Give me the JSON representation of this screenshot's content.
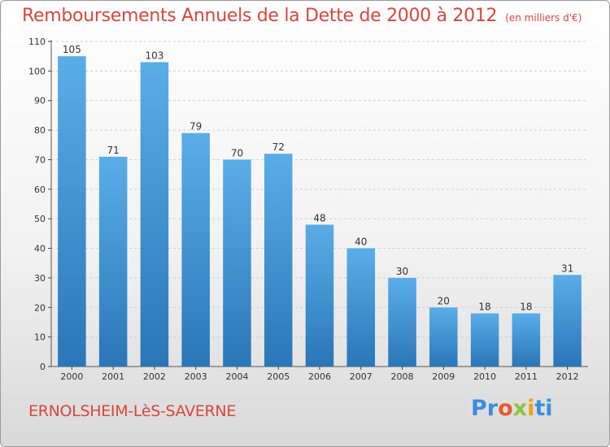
{
  "header": {
    "title": "Remboursements Annuels de la Dette de 2000 à 2012",
    "subtitle": "(en milliers d'€)"
  },
  "footer": {
    "commune": "ERNOLSHEIM-LèS-SAVERNE",
    "logo_parts": [
      "Pr",
      "o",
      "x",
      "i",
      "ti"
    ]
  },
  "colors": {
    "title": "#d8463d",
    "bar_top": "#5aaee8",
    "bar_bottom": "#2a76b8",
    "logo": [
      "#3a8ee0",
      "#e35a2b",
      "#8cc43a",
      "#f0a21a",
      "#3a8ee0"
    ]
  },
  "chart_data": {
    "type": "bar",
    "title": "Remboursements Annuels de la Dette de 2000 à 2012",
    "subtitle": "(en milliers d'€)",
    "xlabel": "",
    "ylabel": "",
    "categories": [
      "2000",
      "2001",
      "2002",
      "2003",
      "2004",
      "2005",
      "2006",
      "2007",
      "2008",
      "2009",
      "2010",
      "2011",
      "2012"
    ],
    "values": [
      105,
      71,
      103,
      79,
      70,
      72,
      48,
      40,
      30,
      20,
      18,
      18,
      31
    ],
    "ylim": [
      0,
      110
    ],
    "yticks": [
      0,
      10,
      20,
      30,
      40,
      50,
      60,
      70,
      80,
      90,
      100,
      110
    ],
    "grid": true,
    "data_labels": true,
    "legend": "none"
  }
}
